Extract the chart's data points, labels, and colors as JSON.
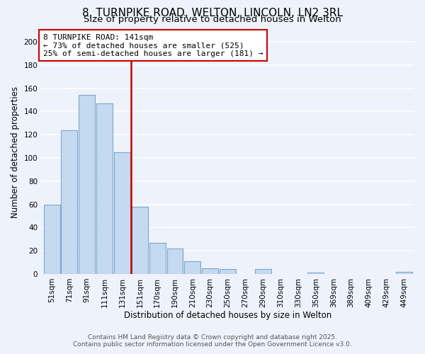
{
  "title": "8, TURNPIKE ROAD, WELTON, LINCOLN, LN2 3RL",
  "subtitle": "Size of property relative to detached houses in Welton",
  "xlabel": "Distribution of detached houses by size in Welton",
  "ylabel": "Number of detached properties",
  "bar_color": "#c5d9f1",
  "bar_edge_color": "#7ba7cc",
  "categories": [
    "51sqm",
    "71sqm",
    "91sqm",
    "111sqm",
    "131sqm",
    "151sqm",
    "170sqm",
    "190sqm",
    "210sqm",
    "230sqm",
    "250sqm",
    "270sqm",
    "290sqm",
    "310sqm",
    "330sqm",
    "350sqm",
    "369sqm",
    "389sqm",
    "409sqm",
    "429sqm",
    "449sqm"
  ],
  "values": [
    60,
    124,
    154,
    147,
    105,
    58,
    27,
    22,
    11,
    5,
    4,
    0,
    4,
    0,
    0,
    1,
    0,
    0,
    0,
    0,
    2
  ],
  "vline_index": 5,
  "vline_color": "#cc0000",
  "annotation_line1": "8 TURNPIKE ROAD: 141sqm",
  "annotation_line2": "← 73% of detached houses are smaller (525)",
  "annotation_line3": "25% of semi-detached houses are larger (181) →",
  "annotation_box_color": "#ffffff",
  "annotation_box_edge": "#cc0000",
  "ylim": [
    0,
    210
  ],
  "yticks": [
    0,
    20,
    40,
    60,
    80,
    100,
    120,
    140,
    160,
    180,
    200
  ],
  "footer_line1": "Contains HM Land Registry data © Crown copyright and database right 2025.",
  "footer_line2": "Contains public sector information licensed under the Open Government Licence v3.0.",
  "bg_color": "#eef2fb",
  "grid_color": "#ffffff",
  "title_fontsize": 11,
  "subtitle_fontsize": 9.5,
  "axis_label_fontsize": 8.5,
  "tick_fontsize": 7.5,
  "footer_fontsize": 6.5,
  "annotation_fontsize": 8
}
